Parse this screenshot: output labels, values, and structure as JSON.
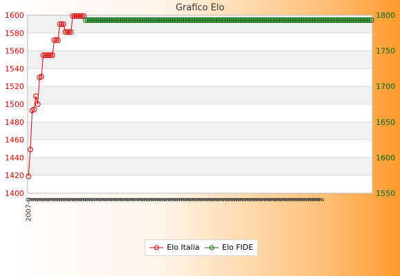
{
  "colors": {
    "italia": "#dd0000",
    "fide": "#006600",
    "left_axis": "#dd0000",
    "right_axis": "#006600"
  },
  "chart_data": {
    "type": "line",
    "title": "Grafico Elo",
    "legend_position": "bottom-center",
    "grid": true,
    "x_tick_labels_rotated": true,
    "x_tick_labels_legible": false,
    "left_axis": {
      "ylim": [
        1400,
        1600
      ],
      "ticks": [
        1400,
        1420,
        1440,
        1460,
        1480,
        1500,
        1520,
        1540,
        1560,
        1580,
        1600
      ]
    },
    "right_axis": {
      "ylim": [
        1550,
        1800
      ],
      "ticks": [
        1550,
        1600,
        1650,
        1700,
        1750,
        1800
      ]
    },
    "x_tick_labels": [
      "2007-0",
      "2",
      "2",
      "2",
      "2",
      "2",
      "2",
      "2",
      "2",
      "2",
      "2",
      "2",
      "2",
      "2",
      "2",
      "2",
      "2",
      "2",
      "2",
      "2",
      "2",
      "2",
      "2",
      "2",
      "2",
      "2",
      "2",
      "2",
      "2",
      "2",
      "2",
      "2",
      "2",
      "2",
      "2",
      "2",
      "2",
      "2",
      "2",
      "2",
      "2",
      "2",
      "2",
      "2",
      "2",
      "2",
      "2",
      "2",
      "2",
      "2",
      "2",
      "2",
      "2",
      "2",
      "2",
      "2",
      "2",
      "2",
      "2",
      "2",
      "2",
      "2",
      "2",
      "2",
      "2",
      "2",
      "2",
      "2",
      "2",
      "2",
      "2",
      "2",
      "2",
      "2",
      "2",
      "2",
      "2",
      "2",
      "2",
      "2",
      "2",
      "2",
      "2",
      "2",
      "2",
      "2",
      "2",
      "2",
      "2",
      "2",
      "2",
      "2",
      "2",
      "2",
      "2",
      "2",
      "2",
      "2",
      "2",
      "2",
      "2",
      "2",
      "2",
      "2",
      "2",
      "2",
      "2",
      "2",
      "2",
      "2",
      "2",
      "2",
      "2",
      "2",
      "2",
      "2",
      "2",
      "2",
      "2",
      "2",
      "2",
      "2",
      "2",
      "2",
      "2",
      "2",
      "2",
      "2",
      "2",
      "2",
      "2",
      "2",
      "2",
      "2",
      "2",
      "2",
      "2",
      "2",
      "2",
      "2",
      "2",
      "2",
      "2",
      "2",
      "2",
      "2",
      "2",
      "2",
      "2",
      "2",
      "2",
      "2",
      "2",
      "2",
      "2",
      "2",
      "2",
      "2",
      "2",
      "2"
    ],
    "series": [
      {
        "name": "Elo Italia",
        "axis": "left",
        "values": [
          1419,
          1449,
          1493,
          1494,
          1509,
          1500,
          1530,
          1531,
          1555,
          1555,
          1555,
          1555,
          1555,
          1555,
          1572,
          1572,
          1572,
          1590,
          1590,
          1590,
          1581,
          1581,
          1581,
          1581,
          1599,
          1599,
          1599,
          1599,
          1599,
          1599,
          1599
        ]
      },
      {
        "name": "Elo FIDE",
        "axis": "right",
        "start_index": 31,
        "values": [
          1793,
          1793,
          1793,
          1793,
          1793,
          1793,
          1793,
          1793,
          1793,
          1793,
          1793,
          1793,
          1793,
          1793,
          1793,
          1793,
          1793,
          1793,
          1793,
          1793,
          1793,
          1793,
          1793,
          1793,
          1793,
          1793,
          1793,
          1793,
          1793,
          1793,
          1793,
          1793,
          1793,
          1793,
          1793,
          1793,
          1793,
          1793,
          1793,
          1793,
          1793,
          1793,
          1793,
          1793,
          1793,
          1793,
          1793,
          1793,
          1793,
          1793,
          1793,
          1793,
          1793,
          1793,
          1793,
          1793,
          1793,
          1793,
          1793,
          1793,
          1793,
          1793,
          1793,
          1793,
          1793,
          1793,
          1793,
          1793,
          1793,
          1793,
          1793,
          1793,
          1793,
          1793,
          1793,
          1793,
          1793,
          1793,
          1793,
          1793,
          1793,
          1793,
          1793,
          1793,
          1793,
          1793,
          1793,
          1793,
          1793,
          1793,
          1793,
          1793,
          1793,
          1793,
          1793,
          1793,
          1793,
          1793,
          1793,
          1793,
          1793,
          1793,
          1793,
          1793,
          1793,
          1793,
          1793,
          1793,
          1793,
          1793,
          1793,
          1793,
          1793,
          1793,
          1793,
          1793,
          1793,
          1793,
          1793,
          1793,
          1793,
          1793,
          1793,
          1793,
          1793,
          1793,
          1793,
          1793,
          1793,
          1793,
          1793,
          1793,
          1793,
          1793,
          1793,
          1793,
          1793,
          1793,
          1793,
          1793,
          1793,
          1793,
          1793,
          1793,
          1793,
          1793,
          1793,
          1793,
          1793,
          1793,
          1793,
          1793,
          1793,
          1793,
          1793,
          1793
        ]
      }
    ]
  },
  "legend": {
    "italia": "Elo Italia",
    "fide": "Elo FIDE"
  }
}
